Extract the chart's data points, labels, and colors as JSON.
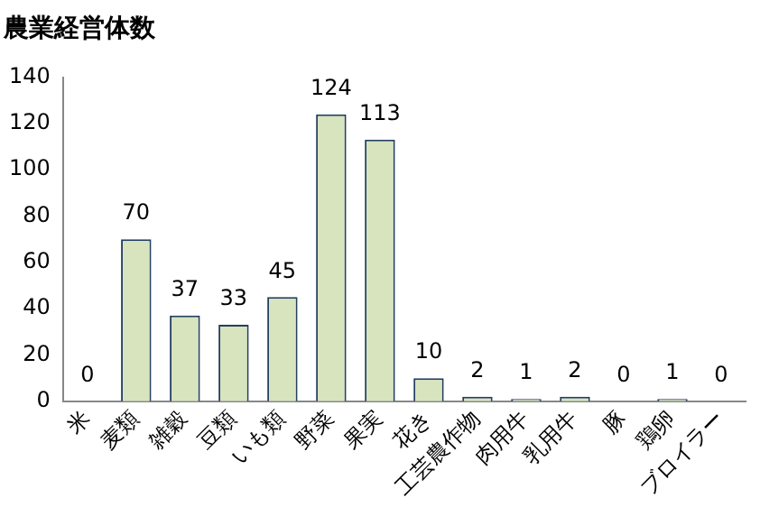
{
  "chart_data": {
    "type": "bar",
    "title": "農業経営体数",
    "categories": [
      "米",
      "麦類",
      "雑穀",
      "豆類",
      "いも類",
      "野菜",
      "果実",
      "花き",
      "工芸農作物",
      "肉用牛",
      "乳用牛",
      "豚",
      "鶏卵",
      "ブロイラー"
    ],
    "values": [
      0,
      70,
      37,
      33,
      45,
      124,
      113,
      10,
      2,
      1,
      2,
      0,
      1,
      0
    ],
    "color": "#d7e4bd",
    "ylim": [
      0,
      140
    ],
    "yticks": [
      0,
      20,
      40,
      60,
      80,
      100,
      120,
      140
    ],
    "grid": false,
    "legend": false,
    "data_labels": true
  }
}
